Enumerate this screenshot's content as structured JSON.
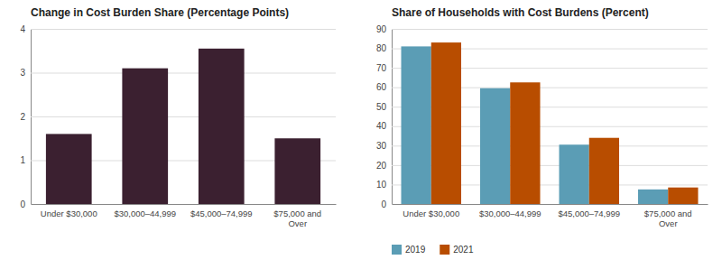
{
  "chart_data": [
    {
      "type": "bar",
      "title": "Change in Cost Burden Share (Percentage Points)",
      "categories": [
        "Under $30,000",
        "$30,000–44,999",
        "$45,000–74,999",
        "$75,000 and\nOver"
      ],
      "values": [
        1.6,
        3.1,
        3.55,
        1.5
      ],
      "color": "#3b2030",
      "ylim": [
        0,
        4
      ],
      "yticks": [
        0,
        1,
        2,
        3,
        4
      ],
      "grid": true
    },
    {
      "type": "bar",
      "title": "Share of Households with Cost Burdens (Percent)",
      "categories": [
        "Under $30,000",
        "$30,000–44,999",
        "$45,000–74,999",
        "$75,000 and\nOver"
      ],
      "series": [
        {
          "name": "2019",
          "color": "#5b9db5",
          "values": [
            81,
            59.5,
            30.5,
            7.5
          ]
        },
        {
          "name": "2021",
          "color": "#b84d00",
          "values": [
            83,
            62.5,
            34,
            8.5
          ]
        }
      ],
      "ylim": [
        0,
        90
      ],
      "yticks": [
        0,
        10,
        20,
        30,
        40,
        50,
        60,
        70,
        80,
        90
      ],
      "grid": true,
      "legend": "bottom"
    }
  ]
}
